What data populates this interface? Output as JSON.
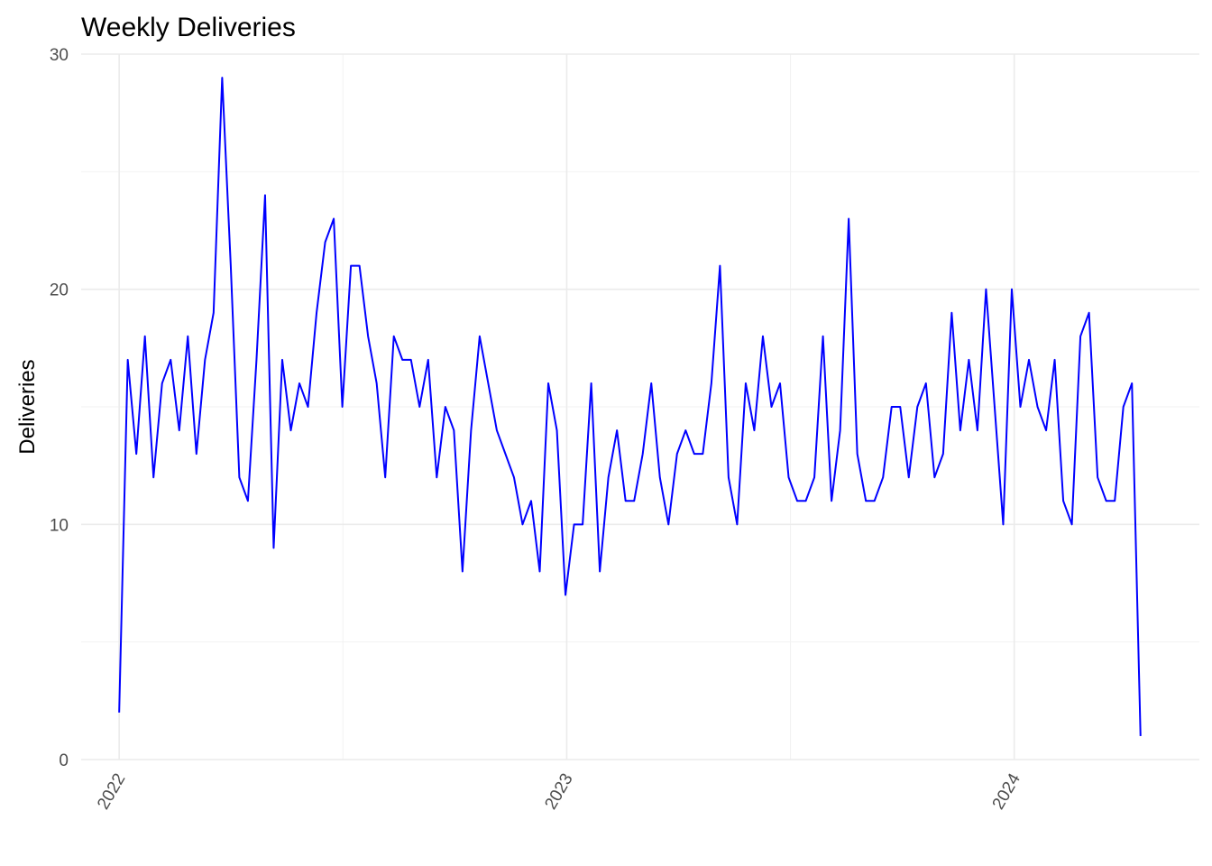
{
  "chart_data": {
    "type": "line",
    "title": "Weekly Deliveries",
    "ylabel": "Deliveries",
    "xlabel": "",
    "ylim": [
      0,
      30
    ],
    "xlim": [
      "2021-12-01",
      "2024-05-31"
    ],
    "grid": true,
    "y_ticks": [
      0,
      10,
      20,
      30
    ],
    "x_ticks": [
      {
        "date": "2022-01-01",
        "label": "2022"
      },
      {
        "date": "2023-01-01",
        "label": "2023"
      },
      {
        "date": "2024-01-01",
        "label": "2024"
      }
    ],
    "x_tick_rotation": -60,
    "colors": {
      "line": "#0000ff",
      "grid": "#ebebeb",
      "tick_text": "#4d4d4d"
    },
    "series": [
      {
        "start_date": "2022-01-01",
        "interval": "week",
        "values": [
          2,
          17,
          13,
          18,
          12,
          16,
          17,
          14,
          18,
          13,
          17,
          19,
          29,
          21,
          12,
          11,
          17,
          24,
          9,
          17,
          14,
          16,
          15,
          19,
          22,
          23,
          15,
          21,
          21,
          18,
          16,
          12,
          18,
          17,
          17,
          15,
          17,
          12,
          15,
          14,
          8,
          14,
          18,
          16,
          14,
          13,
          12,
          10,
          11,
          8,
          16,
          14,
          7,
          10,
          10,
          16,
          8,
          12,
          14,
          11,
          11,
          13,
          16,
          12,
          10,
          13,
          14,
          13,
          13,
          16,
          21,
          12,
          10,
          16,
          14,
          18,
          15,
          16,
          12,
          11,
          11,
          12,
          18,
          11,
          14,
          23,
          13,
          11,
          11,
          12,
          15,
          15,
          12,
          15,
          16,
          12,
          13,
          19,
          14,
          17,
          14,
          20,
          15,
          10,
          20,
          15,
          17,
          15,
          14,
          17,
          11,
          10,
          18,
          19,
          12,
          11,
          11,
          15,
          16,
          1
        ]
      }
    ]
  }
}
